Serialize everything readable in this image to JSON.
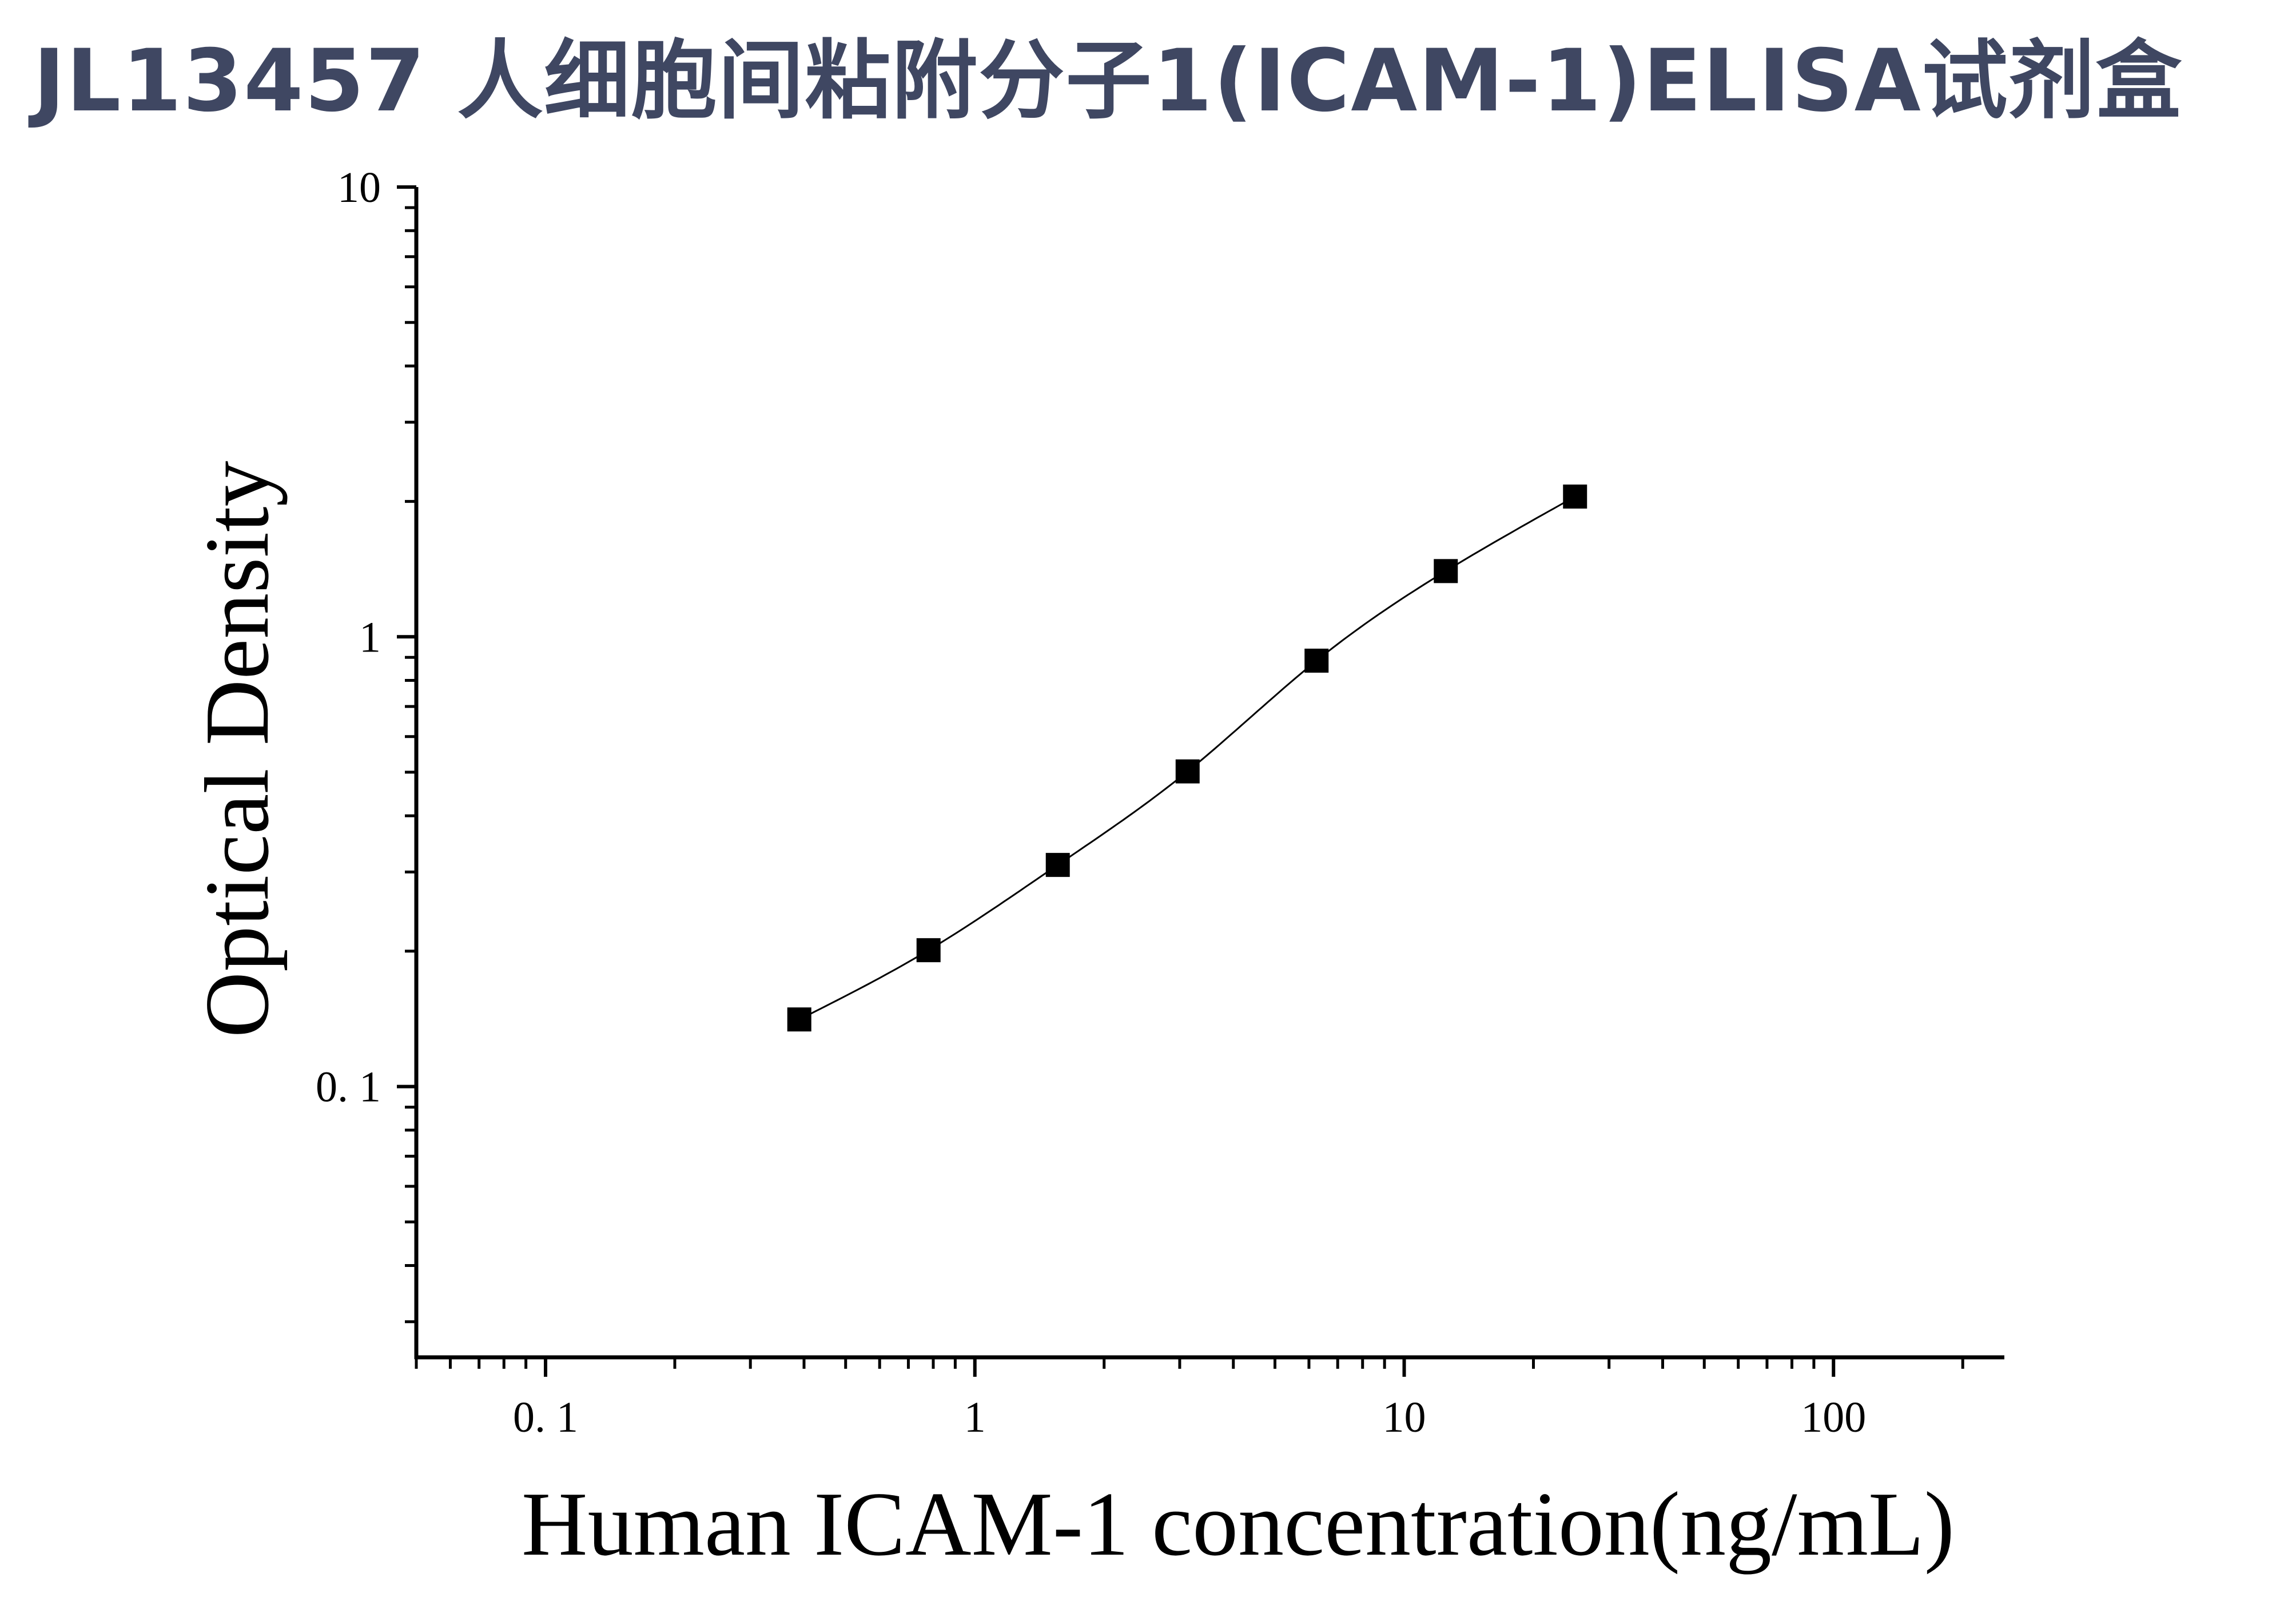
{
  "page": {
    "title": "JL13457 人细胞间粘附分子1(ICAM-1)ELISA试剂盒"
  },
  "colors": {
    "title": "#3f4762",
    "axis": "#000000",
    "marker": "#000000",
    "curve": "#000000"
  },
  "chart_data": {
    "type": "scatter",
    "title": "",
    "xlabel": "Human ICAM-1 concentration(ng/mL)",
    "ylabel": "Optical Density",
    "x_scale": "log",
    "y_scale": "log",
    "xlim": [
      0.05,
      250
    ],
    "ylim": [
      0.025,
      10
    ],
    "x_ticks": [
      {
        "value": 0.1,
        "label": "0. 1"
      },
      {
        "value": 1,
        "label": "1"
      },
      {
        "value": 10,
        "label": "10"
      },
      {
        "value": 100,
        "label": "100"
      }
    ],
    "y_ticks": [
      {
        "value": 0.1,
        "label": "0. 1"
      },
      {
        "value": 1,
        "label": "1"
      },
      {
        "value": 10,
        "label": "10"
      }
    ],
    "grid": false,
    "legend": "none",
    "fit_curve": true,
    "x": [
      0.39,
      0.78,
      1.56,
      3.13,
      6.25,
      12.5,
      25
    ],
    "y": [
      0.141,
      0.201,
      0.311,
      0.502,
      0.885,
      1.4,
      2.05
    ]
  }
}
